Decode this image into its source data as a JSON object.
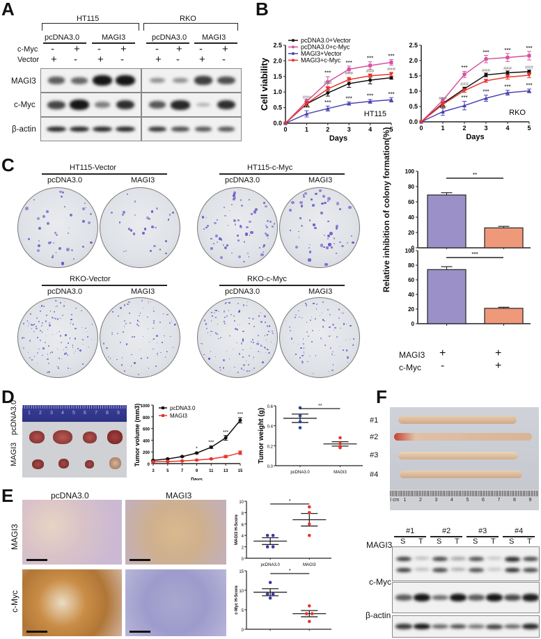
{
  "panels": {
    "A": {
      "label": "A",
      "groups": [
        {
          "name": "HT115",
          "subgroups": [
            "pcDNA3.0",
            "MAGI3"
          ]
        },
        {
          "name": "RKO",
          "subgroups": [
            "pcDNA3.0",
            "MAGI3"
          ]
        }
      ],
      "row_labels": [
        "c-Myc",
        "Vector"
      ],
      "cmyc_signs": [
        "-",
        "+",
        "-",
        "+",
        "-",
        "+",
        "-",
        "+"
      ],
      "vector_signs": [
        "+",
        "-",
        "+",
        "-",
        "+",
        "-",
        "+",
        "-"
      ],
      "blot_labels": [
        "MAGI3",
        "c-Myc",
        "β-actin"
      ],
      "band_intensity": {
        "HT115": {
          "MAGI3": [
            0.55,
            0.5,
            1.0,
            1.0
          ],
          "c-Myc": [
            0.7,
            1.0,
            0.35,
            0.85
          ],
          "beta-actin": [
            0.9,
            0.9,
            0.9,
            0.9
          ]
        },
        "RKO": {
          "MAGI3": [
            0.25,
            0.25,
            0.75,
            0.65
          ],
          "c-Myc": [
            0.6,
            0.9,
            0.05,
            0.85
          ],
          "beta-actin": [
            0.8,
            0.65,
            0.6,
            0.6
          ]
        }
      }
    },
    "B": {
      "label": "B"
    },
    "C": {
      "label": "C",
      "plates": [
        {
          "title": "HT115-Vector",
          "left": "pcDNA3.0",
          "right": "MAGI3"
        },
        {
          "title": "HT115-c-Myc",
          "left": "pcDNA3.0",
          "right": "MAGI3"
        },
        {
          "title": "RKO-Vector",
          "left": "pcDNA3.0",
          "right": "MAGI3"
        },
        {
          "title": "RKO-c-Myc",
          "left": "pcDNA3.0",
          "right": "MAGI3"
        }
      ],
      "bar_ylabel": "Relative inhibition of colony formation(%)",
      "condition_rows": [
        {
          "label": "MAGI3",
          "signs": [
            "+",
            "+"
          ]
        },
        {
          "label": "c-Myc",
          "signs": [
            "-",
            "+"
          ]
        }
      ]
    },
    "D": {
      "label": "D",
      "photo_row_labels": [
        "pcDNA3.0",
        "MAGI3"
      ],
      "ruler_ticks": [
        "1",
        "2",
        "3",
        "4",
        "5",
        "6",
        "7",
        "8",
        "9"
      ]
    },
    "E": {
      "label": "E",
      "col_labels": [
        "pcDNA3.0",
        "MAGI3"
      ],
      "row_labels": [
        "MAGI3",
        "c-Myc"
      ]
    },
    "F": {
      "label": "F",
      "sample_labels": [
        "#1",
        "#2",
        "#3",
        "#4"
      ],
      "ruler_ticks": [
        "0 cm",
        "1",
        "2",
        "3",
        "4",
        "5",
        "6",
        "7",
        "8",
        "9"
      ],
      "lane_labels": [
        "S",
        "T",
        "S",
        "T",
        "S",
        "T",
        "S",
        "T"
      ],
      "blot_labels": [
        "MAGI3",
        "c-Myc",
        "β-actin"
      ],
      "band_intensity": {
        "MAGI3": [
          0.85,
          0.15,
          0.8,
          0.25,
          0.75,
          0.08,
          0.95,
          0.8
        ],
        "c-Myc": [
          0.6,
          1.0,
          0.5,
          1.0,
          0.6,
          1.0,
          0.7,
          0.95
        ],
        "beta-actin": [
          0.8,
          1.0,
          0.55,
          0.7,
          0.45,
          0.75,
          0.55,
          0.9
        ]
      }
    }
  },
  "chart_data": [
    {
      "id": "B-HT115",
      "type": "line",
      "title": "",
      "annotation": "HT115",
      "xlabel": "Days",
      "ylabel": "Cell viability",
      "x": [
        0,
        1,
        2,
        3,
        4,
        5
      ],
      "xlim": [
        0,
        5
      ],
      "ylim": [
        0,
        2.5
      ],
      "yticks": [
        "0.0",
        "0.5",
        "1.0",
        "1.5",
        "2.0",
        "2.5"
      ],
      "series": [
        {
          "name": "pcDNA3.0+Vector",
          "color": "#111111",
          "marker": "circle",
          "values": [
            0,
            0.62,
            0.97,
            1.27,
            1.38,
            1.46
          ],
          "err": [
            0,
            0.08,
            0.1,
            0.12,
            0.12,
            0.05
          ]
        },
        {
          "name": "pcDNA3.0+c-Myc",
          "color": "#d6509e",
          "marker": "square",
          "values": [
            0,
            0.7,
            1.32,
            1.73,
            1.85,
            1.95
          ],
          "err": [
            0,
            0.07,
            0.17,
            0.1,
            0.12,
            0.09
          ]
        },
        {
          "name": "MAGI3+Vector",
          "color": "#4a43b0",
          "marker": "triangle",
          "values": [
            0,
            0.3,
            0.47,
            0.63,
            0.7,
            0.75
          ],
          "err": [
            0,
            0.1,
            0.08,
            0.05,
            0.06,
            0.07
          ]
        },
        {
          "name": "MAGI3+c-Myc",
          "color": "#e8352a",
          "marker": "triangle-down",
          "values": [
            0,
            0.63,
            1.1,
            1.4,
            1.52,
            1.57
          ],
          "err": [
            0,
            0.06,
            0.07,
            0.07,
            0.06,
            0.06
          ]
        }
      ],
      "annotations_top": [
        "***@2",
        "***@3",
        "***@4",
        "***@5"
      ],
      "annotations_hash": [
        "###@1",
        "###@2",
        "###@3",
        "###@4",
        "###@5"
      ],
      "annotations_bottom": [
        "***@1",
        "***@2",
        "***@3",
        "***@4",
        "***@5"
      ]
    },
    {
      "id": "B-RKO",
      "type": "line",
      "title": "",
      "annotation": "RKO",
      "xlabel": "Days",
      "ylabel": "",
      "x": [
        0,
        1,
        2,
        3,
        4,
        5
      ],
      "xlim": [
        0,
        5
      ],
      "ylim": [
        0,
        2.5
      ],
      "yticks": [
        "0.0",
        "0.5",
        "1.0",
        "1.5",
        "2.0",
        "2.5"
      ],
      "series": [
        {
          "name": "pcDNA3.0+Vector",
          "color": "#111111",
          "marker": "circle",
          "values": [
            0,
            0.6,
            1.08,
            1.53,
            1.6,
            1.64
          ],
          "err": [
            0,
            0.07,
            0.05,
            0.06,
            0.06,
            0.05
          ]
        },
        {
          "name": "pcDNA3.0+c-Myc",
          "color": "#d6509e",
          "marker": "square",
          "values": [
            0,
            0.7,
            1.55,
            2.05,
            2.1,
            2.16
          ],
          "err": [
            0,
            0.08,
            0.1,
            0.12,
            0.13,
            0.14
          ]
        },
        {
          "name": "MAGI3+Vector",
          "color": "#4a43b0",
          "marker": "triangle",
          "values": [
            0,
            0.33,
            0.53,
            0.77,
            0.95,
            1.01
          ],
          "err": [
            0,
            0.12,
            0.14,
            0.1,
            0.08,
            0.06
          ]
        },
        {
          "name": "MAGI3+c-Myc",
          "color": "#e8352a",
          "marker": "triangle-down",
          "values": [
            0,
            0.57,
            1.02,
            1.34,
            1.46,
            1.52
          ],
          "err": [
            0,
            0.07,
            0.06,
            0.05,
            0.07,
            0.08
          ]
        }
      ]
    },
    {
      "id": "C-bar-HT115",
      "type": "bar",
      "categories": [
        "MAGI3+ / c-Myc-",
        "MAGI3+ / c-Myc+"
      ],
      "values": [
        69,
        26
      ],
      "err": [
        3,
        2
      ],
      "colors": [
        "#9b90c8",
        "#f0987a"
      ],
      "ylim": [
        0,
        100
      ],
      "yticks": [
        "0",
        "20",
        "40",
        "60",
        "80",
        "100"
      ],
      "significance": "**"
    },
    {
      "id": "C-bar-RKO",
      "type": "bar",
      "categories": [
        "MAGI3+ / c-Myc-",
        "MAGI3+ / c-Myc+"
      ],
      "values": [
        74,
        21
      ],
      "err": [
        4,
        1.5
      ],
      "colors": [
        "#9b90c8",
        "#f0987a"
      ],
      "ylim": [
        0,
        100
      ],
      "yticks": [
        "0",
        "20",
        "40",
        "60",
        "80",
        "100"
      ],
      "significance": "***"
    },
    {
      "id": "D-tumor-volume",
      "type": "line",
      "xlabel": "Days",
      "ylabel": "Tumor volume (mm3)",
      "x": [
        3,
        5,
        7,
        9,
        11,
        13,
        15
      ],
      "ylim": [
        0,
        1000
      ],
      "yticks": [
        "0",
        "200",
        "400",
        "600",
        "800",
        "1000"
      ],
      "xticks": [
        "3",
        "5",
        "7",
        "9",
        "11",
        "13",
        "15"
      ],
      "series": [
        {
          "name": "pcDNA3.0",
          "color": "#111111",
          "values": [
            55,
            80,
            120,
            180,
            280,
            440,
            740
          ],
          "err": [
            5,
            6,
            8,
            10,
            20,
            40,
            45
          ]
        },
        {
          "name": "MAGI3",
          "color": "#e8352a",
          "values": [
            30,
            35,
            45,
            60,
            80,
            120,
            185
          ],
          "err": [
            3,
            4,
            5,
            6,
            10,
            20,
            30
          ]
        }
      ],
      "significance": [
        "*@9",
        "***@11",
        "***@13",
        "***@15"
      ]
    },
    {
      "id": "D-tumor-weight",
      "type": "scatter",
      "ylabel": "Tumor weight (g)",
      "ylim": [
        0,
        0.6
      ],
      "yticks": [
        "0.0",
        "0.2",
        "0.4",
        "0.6"
      ],
      "categories": [
        "pcDNA3.0",
        "MAGI3"
      ],
      "points": [
        [
          0.58,
          0.5,
          0.44,
          0.38
        ],
        [
          0.28,
          0.22,
          0.19,
          0.18
        ]
      ],
      "means": [
        0.475,
        0.218
      ],
      "sem": [
        0.042,
        0.022
      ],
      "colors": [
        "#2a43a8",
        "#e8352a"
      ],
      "significance": "**"
    },
    {
      "id": "E-MAGI3-Hscore",
      "type": "scatter",
      "ylabel": "MAGI3 H-Score",
      "ylim": [
        0,
        10
      ],
      "yticks": [
        "0",
        "2",
        "4",
        "6",
        "8",
        "10"
      ],
      "categories": [
        "pcDNA3.0",
        "MAGI3"
      ],
      "points": [
        [
          4,
          4,
          2,
          2
        ],
        [
          9,
          8,
          6,
          4
        ]
      ],
      "means": [
        3.0,
        6.75
      ],
      "sem": [
        0.6,
        1.1
      ],
      "colors": [
        "#3a37a8",
        "#e8352a"
      ],
      "significance": "*"
    },
    {
      "id": "E-cMyc-Hscore",
      "type": "scatter",
      "ylabel": "c-Myc H-Score",
      "ylim": [
        0,
        15
      ],
      "yticks": [
        "0",
        "5",
        "10",
        "15"
      ],
      "categories": [
        "pcDNA3.0",
        "MAGI3"
      ],
      "points": [
        [
          12,
          9,
          9,
          8
        ],
        [
          6,
          4,
          4,
          2
        ]
      ],
      "means": [
        9.5,
        4.0
      ],
      "sem": [
        0.9,
        0.8
      ],
      "colors": [
        "#3a37a8",
        "#e8352a"
      ],
      "significance": "*"
    }
  ]
}
